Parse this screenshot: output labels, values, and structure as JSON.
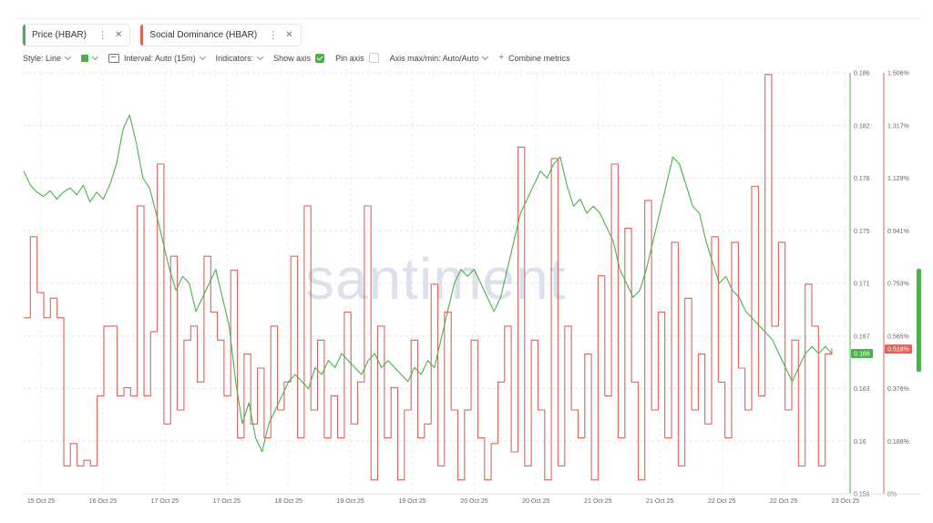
{
  "tabs": [
    {
      "label": "Price (HBAR)",
      "color": "#4cb04c"
    },
    {
      "label": "Social Dominance (HBAR)",
      "color": "#e0625a"
    }
  ],
  "toolbar": {
    "style": "Style: Line",
    "interval": "Interval: Auto (15m)",
    "indicators": "Indicators:",
    "show_axis": "Show axis",
    "pin_axis": "Pin axis",
    "axis_maxmin": "Axis max/min: Auto/Auto",
    "combine": "Combine metrics"
  },
  "watermark": "santiment",
  "chart_data": {
    "type": "line",
    "x_labels": [
      "15 Oct 25",
      "16 Oct 25",
      "17 Oct 25",
      "17 Oct 25",
      "18 Oct 25",
      "19 Oct 25",
      "19 Oct 25",
      "20 Oct 25",
      "20 Oct 25",
      "21 Oct 25",
      "21 Oct 25",
      "22 Oct 25",
      "22 Oct 25",
      "23 Oct 25"
    ],
    "price_axis": {
      "ticks": [
        "0.186",
        "0.182",
        "0.178",
        "0.175",
        "0.171",
        "0.167",
        "0.163",
        "0.16",
        "0.156"
      ],
      "min": 0.156,
      "max": 0.186,
      "current": "0.166",
      "color": "#4cb04c"
    },
    "dominance_axis": {
      "ticks": [
        "1.506%",
        "1.317%",
        "1.129%",
        "0.941%",
        "0.753%",
        "0.565%",
        "0.376%",
        "0.188%",
        "0%"
      ],
      "min": 0,
      "max": 1.506,
      "current": "0.518%",
      "color": "#e0625a"
    },
    "series": [
      {
        "name": "Price (HBAR)",
        "axis": "price",
        "color": "#4cb04c",
        "values": [
          0.179,
          0.178,
          0.1775,
          0.1772,
          0.1776,
          0.177,
          0.1775,
          0.1778,
          0.1773,
          0.178,
          0.1768,
          0.1775,
          0.177,
          0.178,
          0.1795,
          0.182,
          0.183,
          0.181,
          0.1785,
          0.1778,
          0.176,
          0.174,
          0.172,
          0.1705,
          0.1715,
          0.171,
          0.169,
          0.17,
          0.171,
          0.172,
          0.17,
          0.168,
          0.164,
          0.161,
          0.1625,
          0.16,
          0.159,
          0.161,
          0.162,
          0.163,
          0.164,
          0.1645,
          0.164,
          0.1635,
          0.165,
          0.1645,
          0.1655,
          0.165,
          0.166,
          0.1655,
          0.165,
          0.1645,
          0.1655,
          0.166,
          0.165,
          0.1655,
          0.165,
          0.1645,
          0.164,
          0.165,
          0.1645,
          0.1655,
          0.165,
          0.167,
          0.169,
          0.171,
          0.172,
          0.1715,
          0.172,
          0.171,
          0.17,
          0.169,
          0.17,
          0.172,
          0.174,
          0.176,
          0.177,
          0.178,
          0.179,
          0.1785,
          0.1795,
          0.18,
          0.178,
          0.1765,
          0.177,
          0.176,
          0.1765,
          0.176,
          0.175,
          0.174,
          0.172,
          0.171,
          0.17,
          0.1705,
          0.172,
          0.174,
          0.176,
          0.178,
          0.18,
          0.1795,
          0.178,
          0.1765,
          0.176,
          0.174,
          0.1725,
          0.171,
          0.1715,
          0.1705,
          0.17,
          0.169,
          0.1685,
          0.168,
          0.1675,
          0.167,
          0.166,
          0.165,
          0.164,
          0.165,
          0.166,
          0.1665,
          0.166,
          0.1665,
          0.166
        ]
      },
      {
        "name": "Social Dominance (HBAR)",
        "axis": "dominance",
        "color": "#e0625a",
        "values": [
          0.63,
          0.92,
          0.72,
          0.63,
          0.7,
          0.63,
          0.1,
          0.18,
          0.1,
          0.12,
          0.1,
          0.35,
          0.6,
          0.6,
          0.35,
          0.38,
          0.35,
          1.03,
          0.35,
          0.58,
          1.18,
          0.25,
          0.85,
          0.3,
          0.55,
          0.6,
          0.4,
          0.85,
          0.65,
          0.55,
          0.35,
          0.8,
          0.2,
          0.5,
          0.25,
          0.45,
          0.2,
          0.6,
          0.3,
          0.4,
          0.85,
          0.2,
          1.03,
          0.3,
          0.55,
          0.2,
          0.35,
          0.2,
          0.65,
          0.25,
          0.4,
          1.03,
          0.05,
          0.6,
          0.2,
          0.38,
          0.05,
          0.3,
          0.55,
          0.2,
          0.25,
          0.75,
          0.1,
          0.65,
          0.3,
          0.05,
          0.3,
          0.55,
          0.2,
          0.05,
          0.18,
          0.4,
          0.6,
          0.15,
          1.24,
          0.1,
          0.55,
          0.3,
          0.05,
          1.2,
          0.1,
          0.6,
          0.3,
          0.2,
          0.5,
          0.05,
          0.78,
          0.35,
          1.18,
          0.2,
          0.95,
          0.4,
          0.05,
          1.05,
          0.3,
          0.65,
          0.2,
          0.9,
          0.1,
          0.7,
          0.3,
          0.5,
          0.25,
          0.92,
          0.4,
          0.2,
          0.9,
          0.45,
          0.3,
          1.1,
          0.35,
          1.5,
          0.6,
          0.9,
          0.3,
          0.55,
          0.1,
          0.75,
          0.6,
          0.1,
          0.5,
          0.52
        ]
      }
    ]
  }
}
